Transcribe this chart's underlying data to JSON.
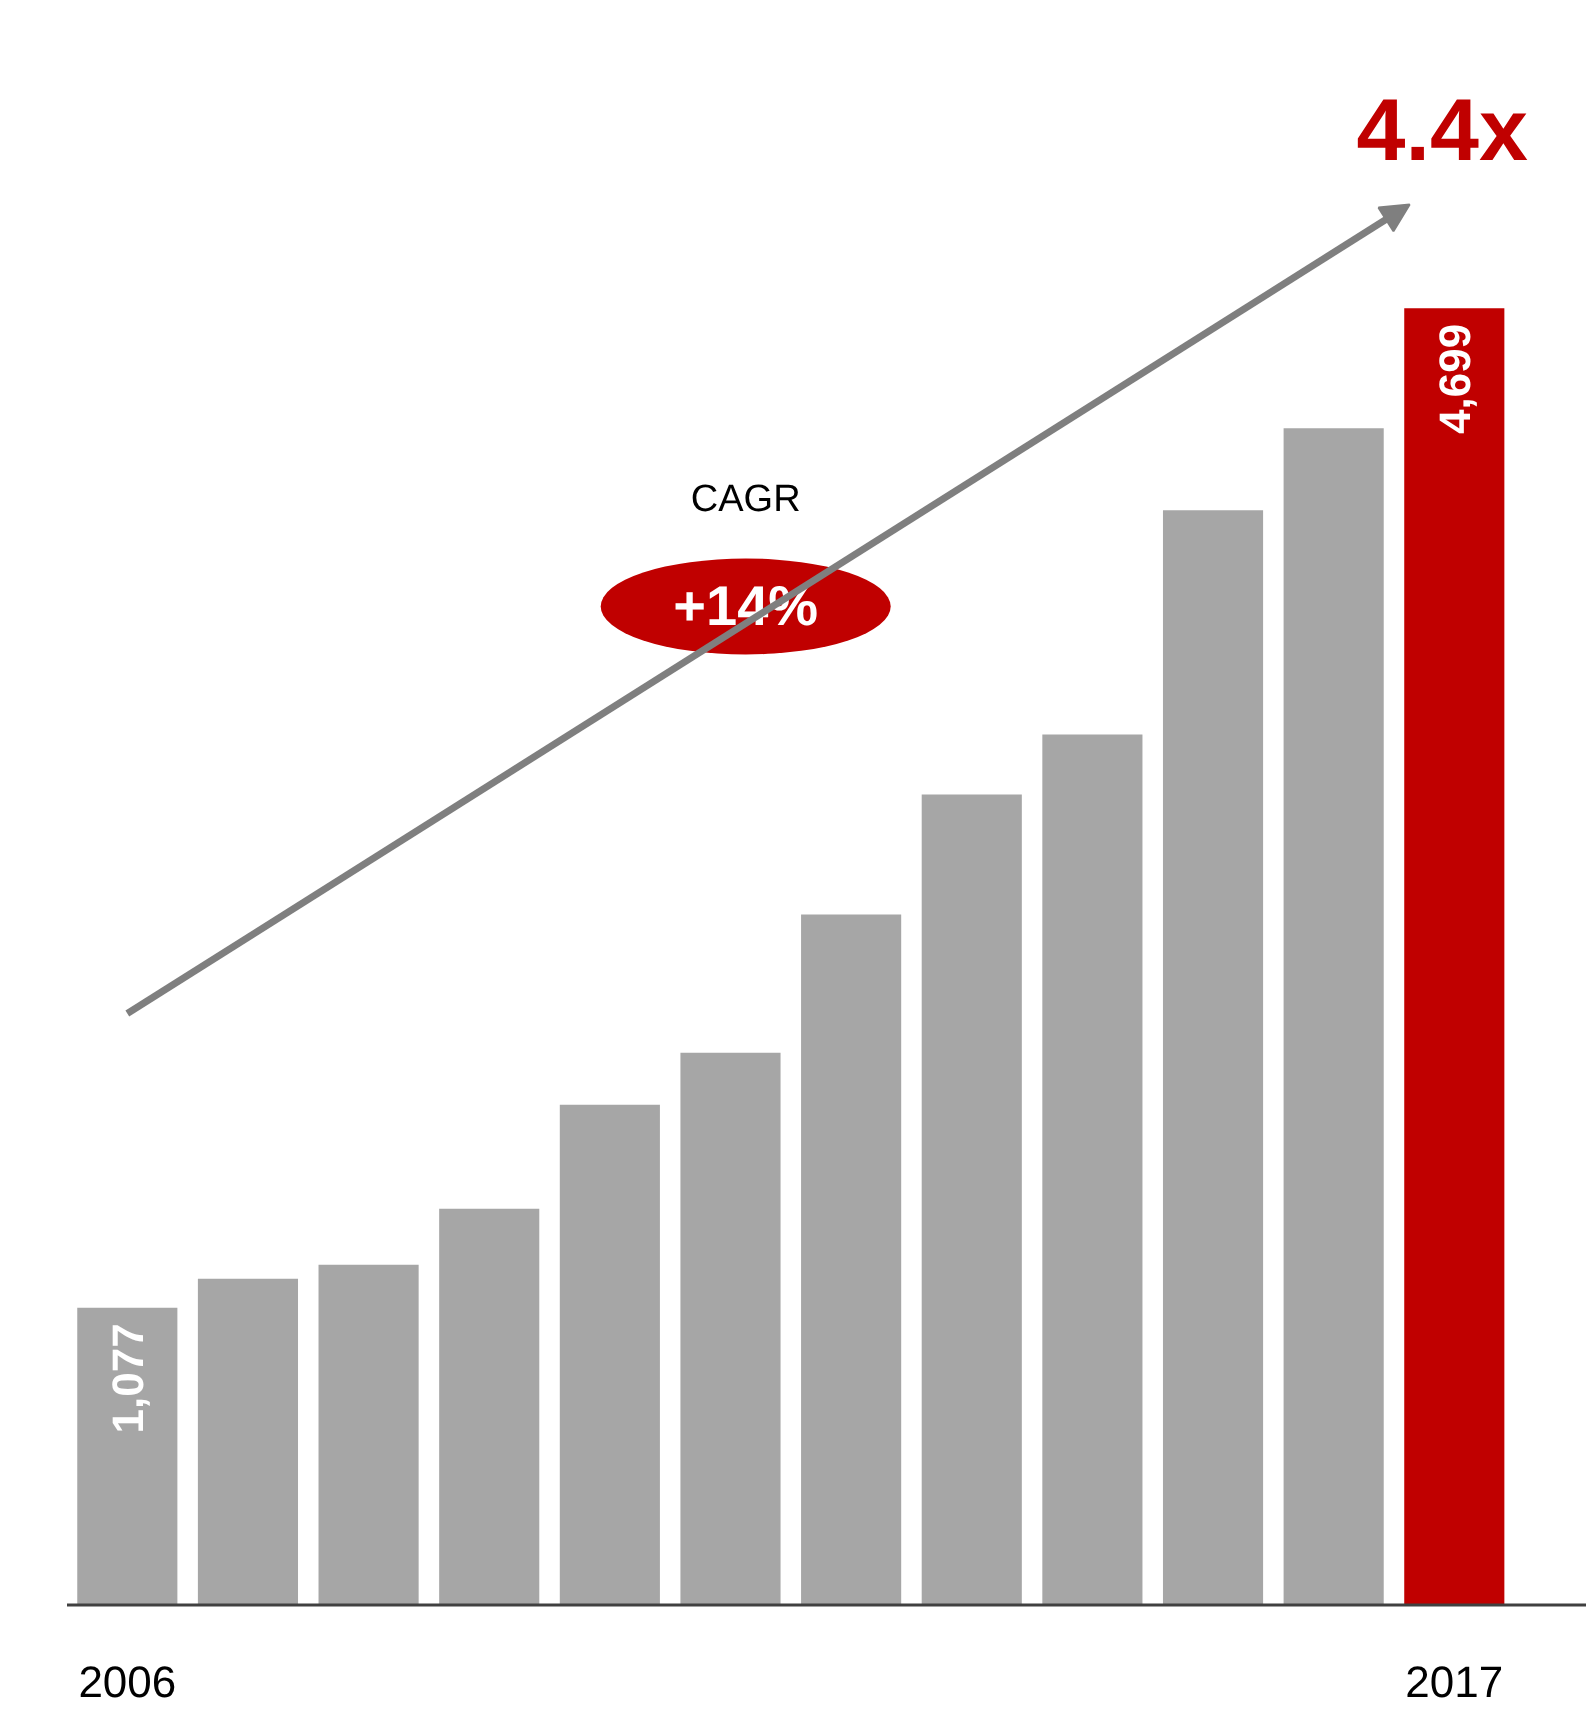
{
  "chart_data": {
    "type": "bar",
    "categories": [
      "2006",
      null,
      null,
      null,
      null,
      null,
      null,
      null,
      null,
      null,
      null,
      "2017"
    ],
    "values": [
      1077,
      1182,
      1233,
      1436,
      1813,
      2001,
      2502,
      2937,
      3154,
      3967,
      4264,
      4699
    ],
    "colors": [
      "#a6a6a6",
      "#a6a6a6",
      "#a6a6a6",
      "#a6a6a6",
      "#a6a6a6",
      "#a6a6a6",
      "#a6a6a6",
      "#a6a6a6",
      "#a6a6a6",
      "#a6a6a6",
      "#a6a6a6",
      "#c00000"
    ],
    "value_labels": [
      "1,077",
      null,
      null,
      null,
      null,
      null,
      null,
      null,
      null,
      null,
      null,
      "4,699"
    ],
    "tick_labels": "x",
    "annotations": [
      "CAGR",
      "+14%",
      "4.4x"
    ],
    "grid": false
  }
}
